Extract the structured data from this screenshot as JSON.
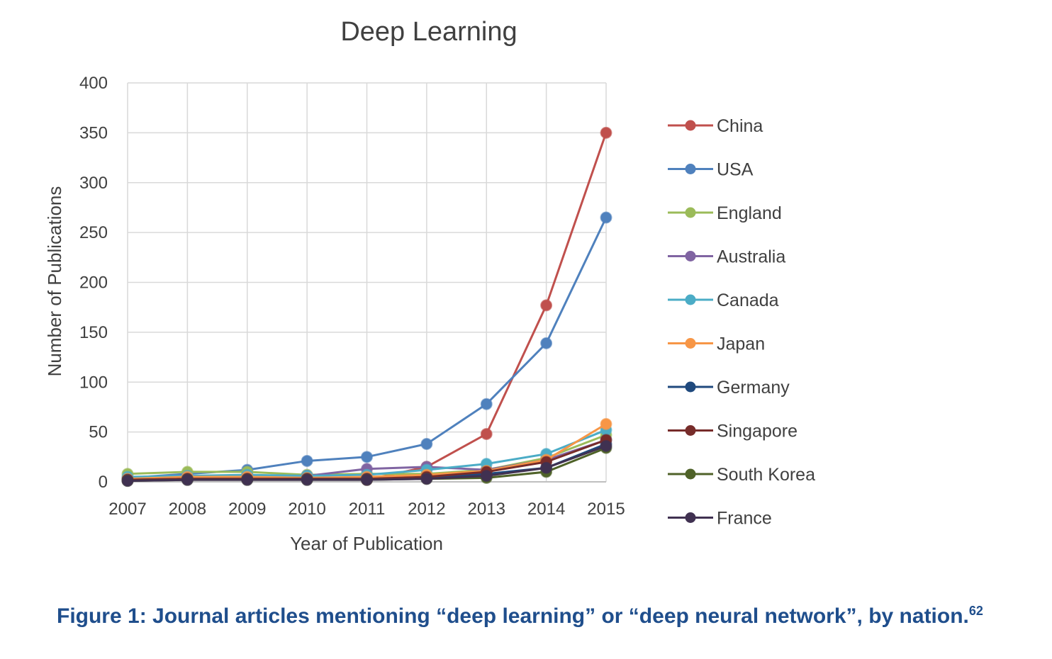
{
  "chart_data": {
    "type": "line",
    "title": "Deep Learning",
    "xlabel": "Year of Publication",
    "ylabel": "Number of Publications",
    "x": [
      "2007",
      "2008",
      "2009",
      "2010",
      "2011",
      "2012",
      "2013",
      "2014",
      "2015"
    ],
    "ylim": [
      0,
      400
    ],
    "yticks": [
      0,
      50,
      100,
      150,
      200,
      250,
      300,
      350,
      400
    ],
    "grid": true,
    "legend_position": "right",
    "series": [
      {
        "name": "China",
        "color": "#c0504d",
        "values": [
          2,
          5,
          7,
          4,
          2,
          15,
          48,
          177,
          350
        ]
      },
      {
        "name": "USA",
        "color": "#4f81bd",
        "values": [
          4,
          8,
          12,
          21,
          25,
          38,
          78,
          139,
          265
        ]
      },
      {
        "name": "England",
        "color": "#9bbb59",
        "values": [
          8,
          10,
          10,
          7,
          8,
          8,
          12,
          24,
          47
        ]
      },
      {
        "name": "Australia",
        "color": "#8064a2",
        "values": [
          3,
          5,
          6,
          6,
          13,
          15,
          12,
          22,
          42
        ]
      },
      {
        "name": "Canada",
        "color": "#4bacc6",
        "values": [
          5,
          6,
          7,
          6,
          7,
          12,
          18,
          28,
          52
        ]
      },
      {
        "name": "Japan",
        "color": "#f79646",
        "values": [
          3,
          5,
          5,
          4,
          5,
          7,
          11,
          22,
          58
        ]
      },
      {
        "name": "Germany",
        "color": "#1f497d",
        "values": [
          2,
          3,
          3,
          3,
          3,
          4,
          8,
          14,
          38
        ]
      },
      {
        "name": "Singapore",
        "color": "#772c2a",
        "values": [
          2,
          3,
          3,
          3,
          3,
          5,
          10,
          20,
          42
        ]
      },
      {
        "name": "South Korea",
        "color": "#4f6228",
        "values": [
          1,
          2,
          2,
          2,
          2,
          3,
          4,
          10,
          34
        ]
      },
      {
        "name": "France",
        "color": "#403151",
        "values": [
          1,
          2,
          2,
          2,
          2,
          3,
          6,
          14,
          36
        ]
      }
    ]
  },
  "caption": {
    "text": "Figure 1: Journal articles mentioning “deep learning” or “deep neural network”, by nation.",
    "superscript": "62"
  }
}
